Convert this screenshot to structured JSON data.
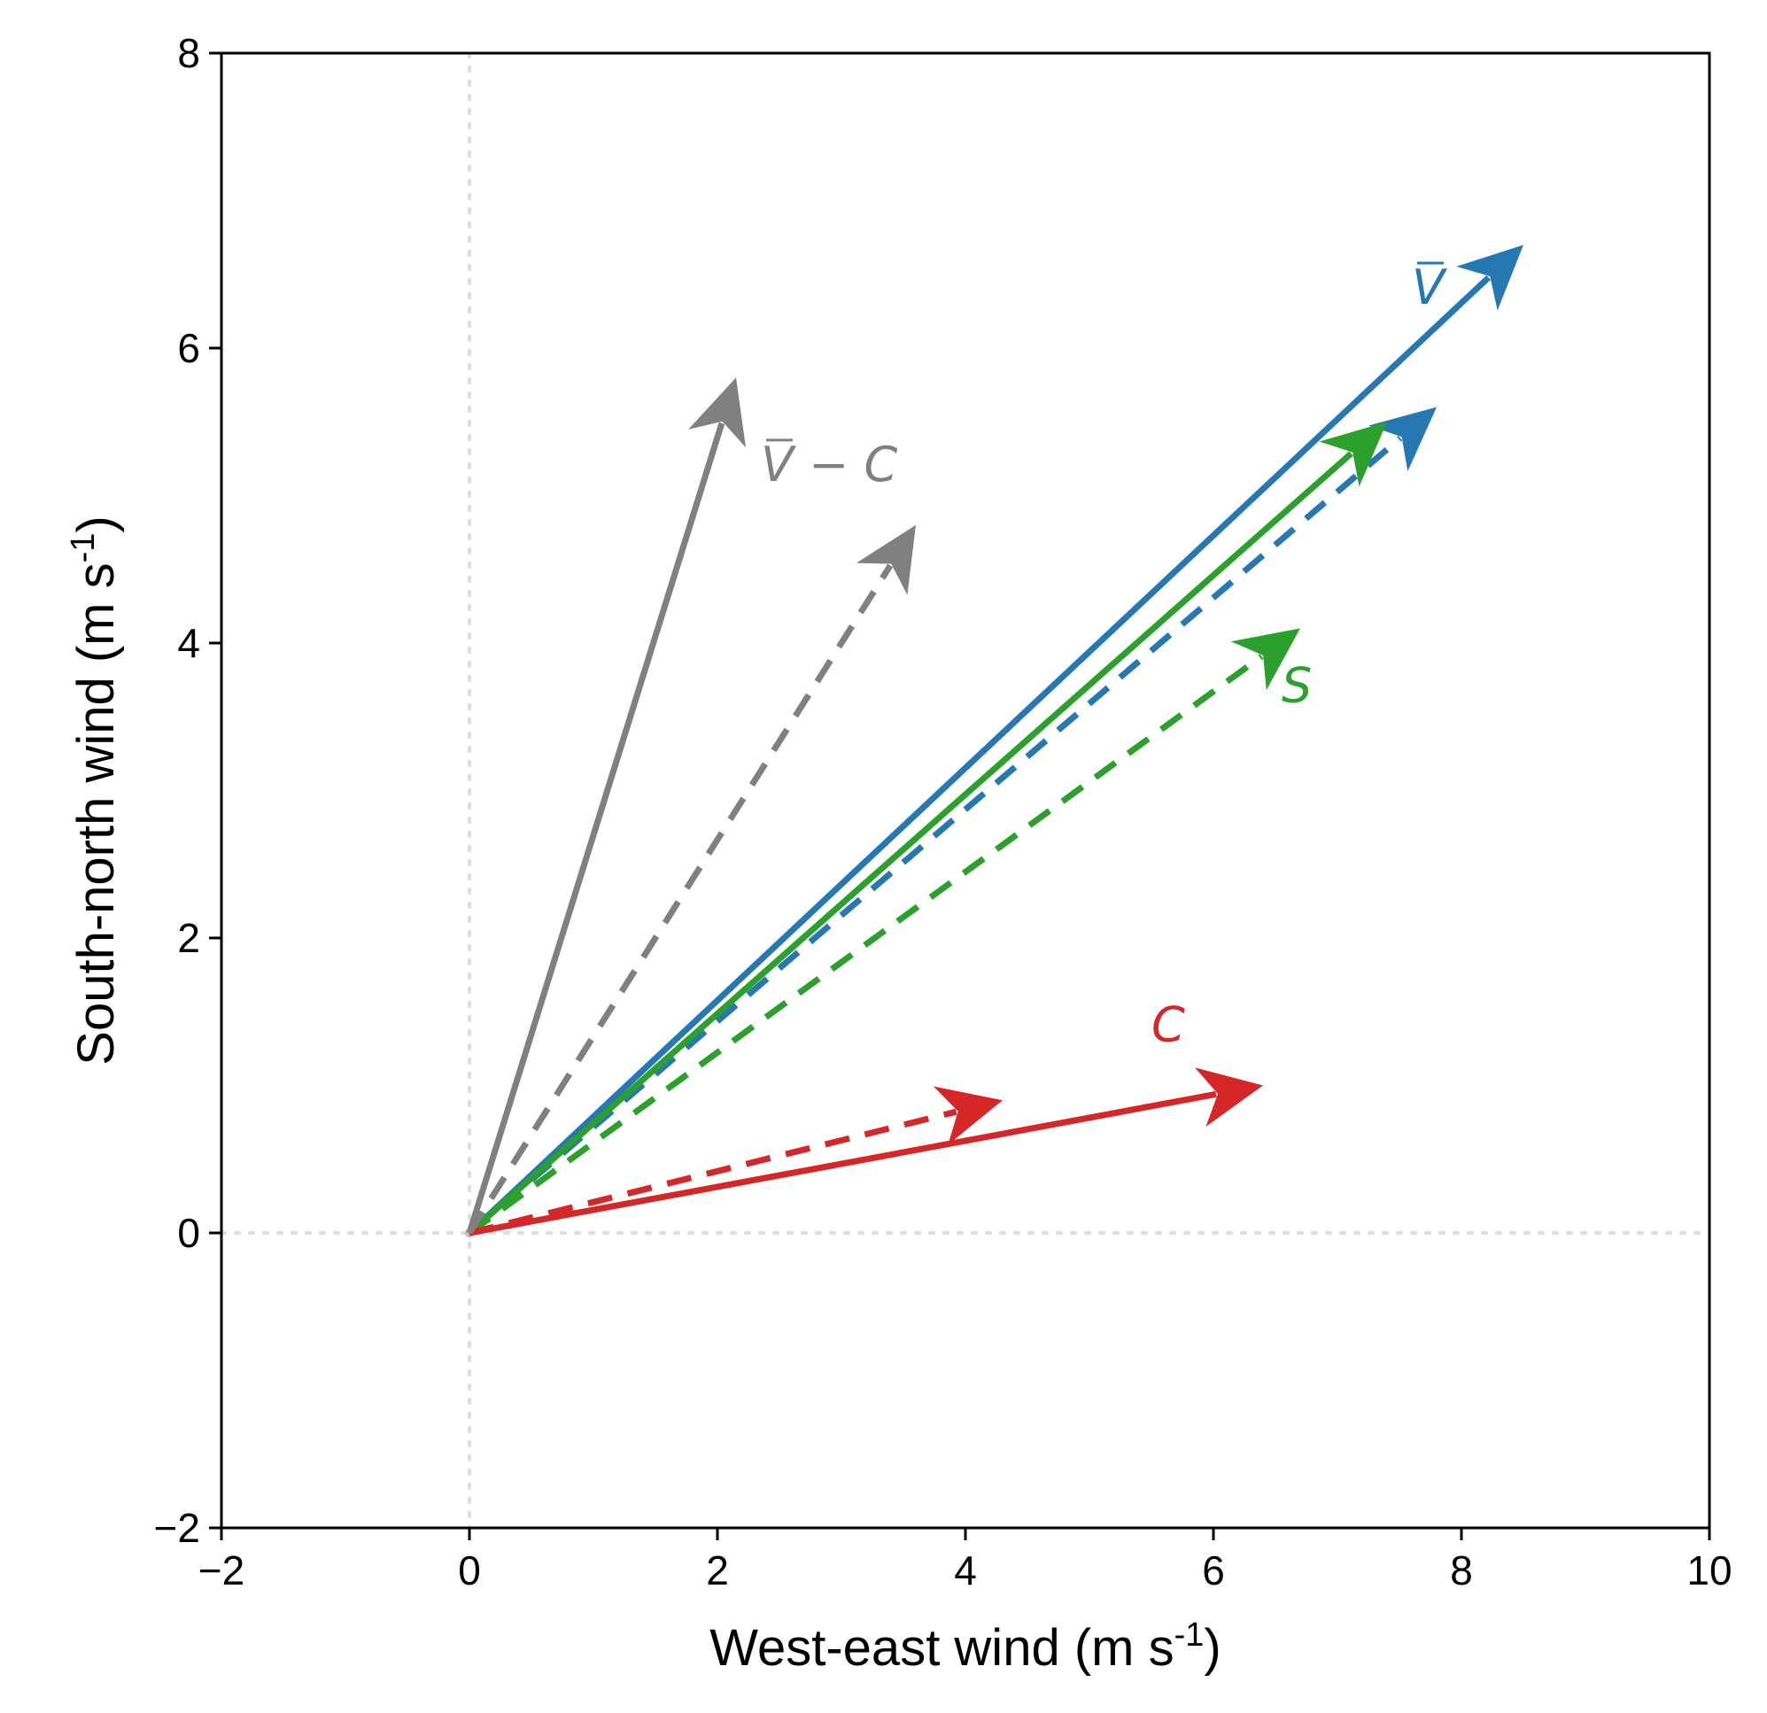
{
  "chart_data": {
    "type": "vector",
    "xlabel": "West-east wind (m s",
    "ylabel": "South-north wind (m s",
    "axis_unit_exponent": "-1",
    "axis_label_close": ")",
    "xlim": [
      -2,
      10
    ],
    "ylim": [
      -2,
      8
    ],
    "xticks": [
      -2,
      0,
      2,
      4,
      6,
      8,
      10
    ],
    "yticks": [
      -2,
      0,
      2,
      4,
      6,
      8
    ],
    "xtick_labels": [
      "−2",
      "0",
      "2",
      "4",
      "6",
      "8",
      "10"
    ],
    "ytick_labels": [
      "−2",
      "0",
      "2",
      "4",
      "6",
      "8"
    ],
    "zero_reference_lines": true,
    "colors": {
      "blue": "#2678b2",
      "green": "#2ca02c",
      "red": "#d62728",
      "gray": "#808080",
      "reference": "#dddddd"
    },
    "vectors": [
      {
        "id": "vbar-solid",
        "color": "#2678b2",
        "style": "solid",
        "x": 8.5,
        "y": 6.7
      },
      {
        "id": "vbar-dashed",
        "color": "#2678b2",
        "style": "dashed",
        "x": 7.8,
        "y": 5.6
      },
      {
        "id": "s-solid",
        "color": "#2ca02c",
        "style": "solid",
        "x": 7.4,
        "y": 5.5
      },
      {
        "id": "s-dashed",
        "color": "#2ca02c",
        "style": "dashed",
        "x": 6.7,
        "y": 4.1
      },
      {
        "id": "c-solid",
        "color": "#d62728",
        "style": "solid",
        "x": 6.4,
        "y": 1.0
      },
      {
        "id": "c-dashed",
        "color": "#d62728",
        "style": "dashed",
        "x": 4.3,
        "y": 0.9
      },
      {
        "id": "vbar-minus-c-solid",
        "color": "#808080",
        "style": "solid",
        "x": 2.15,
        "y": 5.8
      },
      {
        "id": "vbar-minus-c-dashed",
        "color": "#808080",
        "style": "dashed",
        "x": 3.6,
        "y": 4.8
      }
    ],
    "annotations": [
      {
        "id": "label-vbar",
        "text": "V",
        "overbar": true,
        "color": "#2678b2",
        "x": 7.6,
        "y": 6.3
      },
      {
        "id": "label-vbar-minus-c",
        "text": "V − C",
        "overbar": true,
        "color": "#808080",
        "x": 2.35,
        "y": 5.1
      },
      {
        "id": "label-s",
        "text": "S",
        "overbar": false,
        "color": "#2ca02c",
        "x": 6.55,
        "y": 3.6
      },
      {
        "id": "label-c",
        "text": "C",
        "overbar": false,
        "color": "#d62728",
        "x": 5.5,
        "y": 1.3
      }
    ]
  }
}
